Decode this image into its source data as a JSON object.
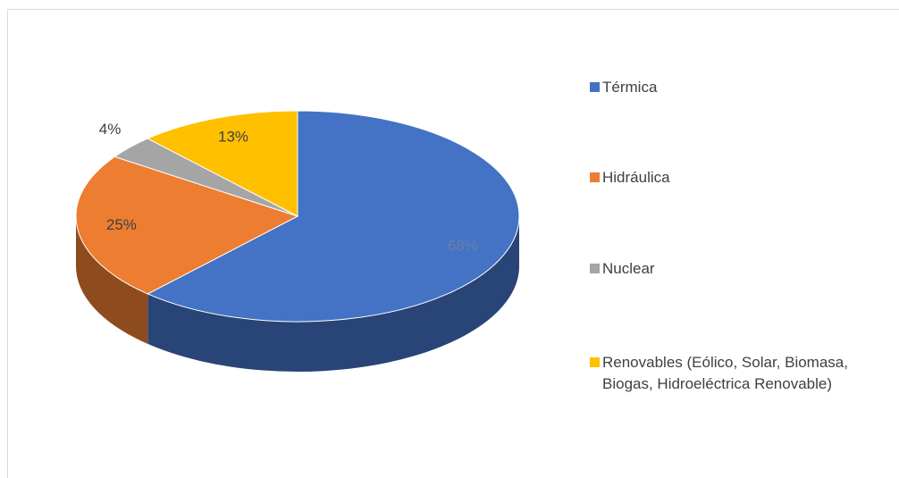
{
  "chart_data": {
    "type": "pie",
    "categories": [
      "Térmica",
      "Hidráulica",
      "Nuclear",
      "Renovables (Eólico, Solar, Biomasa, Biogas, Hidroeléctrica Renovable)"
    ],
    "values": [
      68,
      25,
      4,
      13
    ],
    "value_labels": [
      "68%",
      "25%",
      "4%",
      "13%"
    ],
    "colors": [
      "#4472c4",
      "#ed7d31",
      "#a5a5a5",
      "#ffc000"
    ],
    "legend": "right"
  }
}
